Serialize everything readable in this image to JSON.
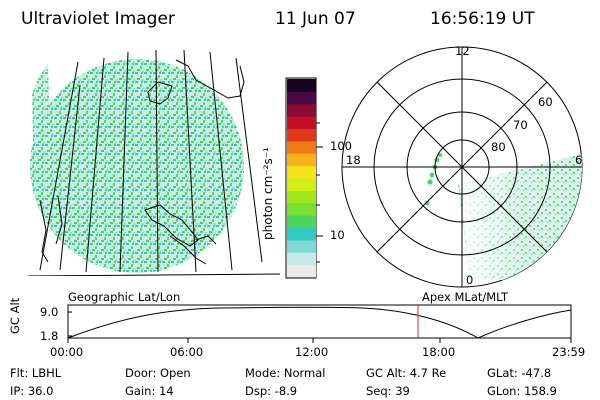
{
  "header": {
    "title": "Ultraviolet Imager",
    "date": "11 Jun 07",
    "time": "16:56:19 UT"
  },
  "colorbar": {
    "unit_label": "photon cm⁻²s⁻¹",
    "ticks": [
      "100",
      "10"
    ],
    "colors": [
      "#e9eaea",
      "#c6e8e6",
      "#7fd8d3",
      "#33c9c3",
      "#4bd460",
      "#77df2f",
      "#a2e81d",
      "#d1ee17",
      "#f2e31a",
      "#f8b11a",
      "#f07a16",
      "#e0361a",
      "#c20f26",
      "#8c0b35",
      "#4a0a46",
      "#180420"
    ]
  },
  "polar_plot": {
    "mlt_labels": [
      "12",
      "18",
      "6",
      "0"
    ],
    "lat_labels": [
      "60",
      "70",
      "80"
    ]
  },
  "orbit_panel": {
    "left_title": "Geographic Lat/Lon",
    "right_title": "Apex  MLat/MLT",
    "ylabel": "GC Alt",
    "y_ticks": [
      "9.0",
      "1.8"
    ],
    "x_ticks": [
      "00:00",
      "06:00",
      "12:00",
      "18:00",
      "23:59"
    ],
    "current_time_marker": "16:56:19",
    "marker_color": "#cc3333"
  },
  "info": {
    "flt": "Flt: LBHL",
    "ip": "IP: 36.0",
    "door": "Door: Open",
    "gain": "Gain: 14",
    "mode": "Mode: Normal",
    "dsp": "Dsp:    -8.9",
    "gc_alt": "GC Alt: 4.7 Re",
    "seq": "Seq: 39",
    "glat": "GLat:  -47.8",
    "glon": "GLon: 158.9"
  }
}
